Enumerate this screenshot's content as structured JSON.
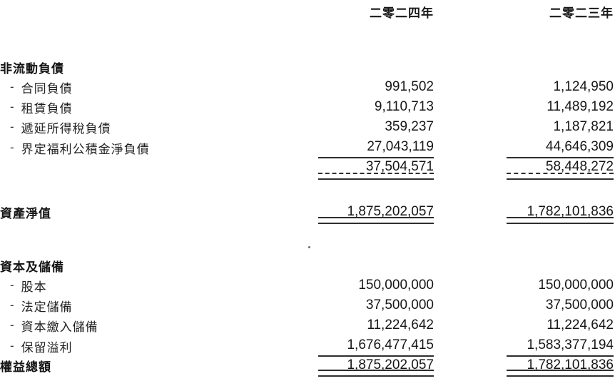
{
  "dash": "-",
  "header": {
    "col_2024": "二零二四年",
    "col_2023": "二零二三年"
  },
  "non_current_liabilities": {
    "title": "非流動負債",
    "items": [
      {
        "label": "合同負債",
        "y2024": "991,502",
        "y2023": "1,124,950"
      },
      {
        "label": "租賃負債",
        "y2024": "9,110,713",
        "y2023": "11,489,192"
      },
      {
        "label": "遞延所得稅負債",
        "y2024": "359,237",
        "y2023": "1,187,821"
      },
      {
        "label": "界定福利公積金淨負債",
        "y2024": "27,043,119",
        "y2023": "44,646,309"
      }
    ],
    "subtotal": {
      "y2024": "37,504,571",
      "y2023": "58,448,272"
    }
  },
  "net_assets": {
    "label": "資產淨值",
    "y2024": "1,875,202,057",
    "y2023": "1,782,101,836"
  },
  "capital_and_reserves": {
    "title": "資本及儲備",
    "items": [
      {
        "label": "股本",
        "y2024": "150,000,000",
        "y2023": "150,000,000"
      },
      {
        "label": "法定儲備",
        "y2024": "37,500,000",
        "y2023": "37,500,000"
      },
      {
        "label": "資本繳入儲備",
        "y2024": "11,224,642",
        "y2023": "11,224,642"
      },
      {
        "label": "保留溢利",
        "y2024": "1,676,477,415",
        "y2023": "1,583,377,194"
      }
    ]
  },
  "total_equity": {
    "label": "權益總額",
    "y2024": "1,875,202,057",
    "y2023": "1,782,101,836"
  },
  "colors": {
    "ink": "#1f1f1f",
    "rule": "#2e2e2e",
    "background": "#ffffff"
  }
}
